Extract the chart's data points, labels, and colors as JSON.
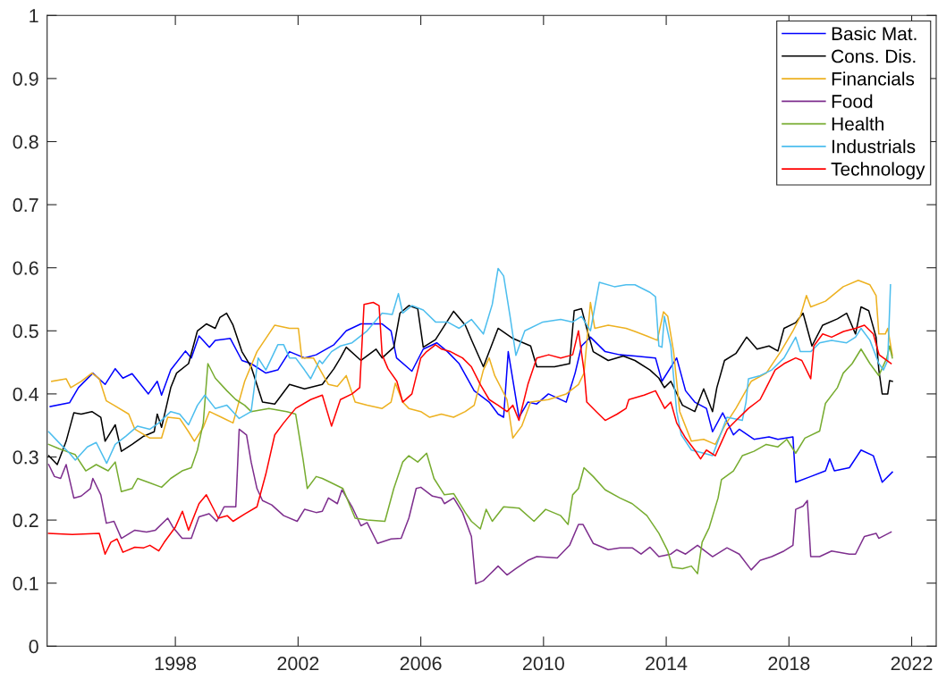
{
  "chart_data": {
    "type": "line",
    "xlim": [
      1993.82,
      2022.8
    ],
    "ylim": [
      0,
      1
    ],
    "xticks": [
      1998,
      2002,
      2006,
      2010,
      2014,
      2018,
      2022
    ],
    "yticks": [
      0,
      0.1,
      0.2,
      0.3,
      0.4,
      0.5,
      0.6,
      0.7,
      0.8,
      0.9,
      1
    ],
    "legend": "top right",
    "line_style": "solid",
    "series": [
      {
        "name": "Basic Mat.",
        "color": "#0000ff",
        "x": [
          1993.92,
          1994.55,
          1994.84,
          1995.31,
          1995.71,
          1996.04,
          1996.29,
          1996.59,
          1997.12,
          1997.41,
          1997.55,
          1997.85,
          1998.33,
          1998.52,
          1998.77,
          1999.11,
          1999.3,
          1999.79,
          2000.17,
          2000.47,
          2000.95,
          2001.34,
          2001.72,
          2002.21,
          2002.59,
          2003.17,
          2003.57,
          2004.05,
          2004.74,
          2005.03,
          2005.21,
          2005.71,
          2006.08,
          2006.52,
          2006.87,
          2007.25,
          2007.74,
          2008.23,
          2008.52,
          2008.7,
          2008.85,
          2009.2,
          2009.49,
          2009.78,
          2010.16,
          2010.74,
          2011.03,
          2011.24,
          2011.53,
          2012.01,
          2012.49,
          2012.98,
          2013.65,
          2013.86,
          2014.34,
          2014.63,
          2014.93,
          2015.31,
          2015.51,
          2015.84,
          2016.19,
          2016.38,
          2016.86,
          2017.35,
          2017.64,
          2018.13,
          2018.22,
          2018.71,
          2019.19,
          2019.33,
          2019.48,
          2019.97,
          2020.35,
          2020.75,
          2021.04,
          2021.37
        ],
        "values": [
          0.38,
          0.386,
          0.41,
          0.433,
          0.415,
          0.44,
          0.425,
          0.432,
          0.4,
          0.42,
          0.398,
          0.438,
          0.468,
          0.457,
          0.492,
          0.474,
          0.485,
          0.488,
          0.453,
          0.448,
          0.433,
          0.438,
          0.467,
          0.457,
          0.462,
          0.478,
          0.5,
          0.511,
          0.511,
          0.5,
          0.457,
          0.436,
          0.471,
          0.481,
          0.467,
          0.448,
          0.405,
          0.387,
          0.368,
          0.363,
          0.467,
          0.363,
          0.387,
          0.384,
          0.4,
          0.387,
          0.433,
          0.476,
          0.49,
          0.467,
          0.462,
          0.46,
          0.457,
          0.42,
          0.457,
          0.405,
          0.387,
          0.377,
          0.34,
          0.37,
          0.335,
          0.344,
          0.328,
          0.332,
          0.328,
          0.332,
          0.26,
          0.269,
          0.278,
          0.297,
          0.278,
          0.283,
          0.311,
          0.302,
          0.26,
          0.276
        ]
      },
      {
        "name": "Cons. Dis.",
        "color": "#000000",
        "x": [
          1993.87,
          1994.15,
          1994.44,
          1994.69,
          1994.93,
          1995.28,
          1995.57,
          1995.71,
          1996.04,
          1996.24,
          1996.59,
          1996.97,
          1997.31,
          1997.41,
          1997.55,
          1997.85,
          1998.04,
          1998.43,
          1998.72,
          1999.01,
          1999.3,
          1999.45,
          1999.67,
          1999.88,
          2000.17,
          2000.47,
          2000.84,
          2001.24,
          2001.72,
          2002.21,
          2002.79,
          2003.17,
          2003.38,
          2003.57,
          2004.05,
          2004.54,
          2004.74,
          2005.12,
          2005.32,
          2005.61,
          2005.9,
          2006.08,
          2006.48,
          2007.07,
          2007.45,
          2007.65,
          2008.04,
          2008.52,
          2009.0,
          2009.58,
          2009.78,
          2010.36,
          2010.85,
          2011.0,
          2011.24,
          2011.43,
          2011.62,
          2012.11,
          2012.6,
          2012.98,
          2013.47,
          2013.76,
          2013.94,
          2014.15,
          2014.53,
          2014.93,
          2015.22,
          2015.51,
          2015.65,
          2015.9,
          2016.27,
          2016.62,
          2016.96,
          2017.35,
          2017.64,
          2017.84,
          2018.22,
          2018.46,
          2018.75,
          2019.1,
          2019.58,
          2019.88,
          2020.17,
          2020.35,
          2020.6,
          2020.84,
          2020.93,
          2021.04,
          2021.22,
          2021.28,
          2021.37
        ],
        "values": [
          0.302,
          0.288,
          0.325,
          0.37,
          0.368,
          0.372,
          0.363,
          0.325,
          0.351,
          0.309,
          0.32,
          0.333,
          0.34,
          0.368,
          0.347,
          0.41,
          0.433,
          0.448,
          0.5,
          0.511,
          0.504,
          0.521,
          0.528,
          0.509,
          0.467,
          0.443,
          0.387,
          0.384,
          0.415,
          0.408,
          0.415,
          0.44,
          0.457,
          0.474,
          0.453,
          0.471,
          0.457,
          0.474,
          0.528,
          0.54,
          0.535,
          0.474,
          0.486,
          0.531,
          0.509,
          0.486,
          0.443,
          0.504,
          0.488,
          0.476,
          0.443,
          0.443,
          0.448,
          0.532,
          0.535,
          0.5,
          0.467,
          0.453,
          0.46,
          0.453,
          0.438,
          0.425,
          0.41,
          0.42,
          0.382,
          0.372,
          0.408,
          0.372,
          0.41,
          0.453,
          0.464,
          0.49,
          0.471,
          0.476,
          0.468,
          0.504,
          0.513,
          0.528,
          0.476,
          0.509,
          0.519,
          0.528,
          0.495,
          0.538,
          0.532,
          0.49,
          0.438,
          0.4,
          0.4,
          0.421,
          0.42
        ]
      },
      {
        "name": "Financials",
        "color": "#edb120",
        "x": [
          1993.97,
          1994.44,
          1994.59,
          1994.93,
          1995.28,
          1995.52,
          1995.75,
          1996.0,
          1996.48,
          1996.68,
          1997.17,
          1997.55,
          1997.75,
          1998.14,
          1998.43,
          1998.62,
          1998.91,
          1999.11,
          1999.5,
          1999.88,
          2000.26,
          2000.66,
          2001.24,
          2001.72,
          2002.01,
          2002.12,
          2002.5,
          2002.99,
          2003.28,
          2003.57,
          2003.86,
          2004.25,
          2004.74,
          2005.03,
          2005.17,
          2005.41,
          2005.61,
          2006.0,
          2006.29,
          2006.67,
          2007.07,
          2007.45,
          2007.74,
          2008.04,
          2008.23,
          2008.41,
          2008.81,
          2009.0,
          2009.29,
          2009.58,
          2010.16,
          2010.74,
          2011.14,
          2011.32,
          2011.53,
          2011.67,
          2012.11,
          2012.69,
          2012.98,
          2013.36,
          2013.71,
          2013.91,
          2014.05,
          2014.24,
          2014.44,
          2014.82,
          2015.22,
          2015.6,
          2015.9,
          2016.27,
          2016.77,
          2017.26,
          2017.73,
          2018.13,
          2018.37,
          2018.57,
          2018.71,
          2019.19,
          2019.77,
          2020.26,
          2020.64,
          2020.84,
          2020.93,
          2021.14,
          2021.22,
          2021.37
        ],
        "values": [
          0.42,
          0.424,
          0.41,
          0.42,
          0.433,
          0.424,
          0.389,
          0.382,
          0.368,
          0.344,
          0.33,
          0.33,
          0.363,
          0.361,
          0.34,
          0.325,
          0.347,
          0.372,
          0.363,
          0.354,
          0.42,
          0.467,
          0.509,
          0.504,
          0.504,
          0.457,
          0.457,
          0.415,
          0.412,
          0.429,
          0.387,
          0.382,
          0.377,
          0.387,
          0.417,
          0.387,
          0.377,
          0.372,
          0.363,
          0.368,
          0.363,
          0.372,
          0.382,
          0.438,
          0.457,
          0.429,
          0.391,
          0.33,
          0.349,
          0.387,
          0.391,
          0.4,
          0.415,
          0.433,
          0.545,
          0.504,
          0.509,
          0.504,
          0.499,
          0.492,
          0.485,
          0.53,
          0.523,
          0.467,
          0.372,
          0.325,
          0.328,
          0.32,
          0.349,
          0.377,
          0.42,
          0.433,
          0.467,
          0.5,
          0.523,
          0.556,
          0.538,
          0.547,
          0.57,
          0.58,
          0.573,
          0.556,
          0.495,
          0.495,
          0.504,
          0.461
        ]
      },
      {
        "name": "Food",
        "color": "#7e2f8e",
        "x": [
          1993.87,
          1994.06,
          1994.26,
          1994.44,
          1994.69,
          1994.93,
          1995.23,
          1995.31,
          1995.57,
          1995.75,
          1996.0,
          1996.24,
          1996.68,
          1997.06,
          1997.35,
          1997.75,
          1997.93,
          1998.22,
          1998.52,
          1998.77,
          1999.1,
          1999.35,
          1999.59,
          1999.97,
          2000.08,
          2000.32,
          2000.47,
          2000.66,
          2000.84,
          2001.14,
          2001.53,
          2001.97,
          2002.21,
          2002.59,
          2002.79,
          2002.99,
          2003.28,
          2003.43,
          2003.76,
          2004.05,
          2004.25,
          2004.59,
          2005.03,
          2005.36,
          2005.61,
          2005.85,
          2006.0,
          2006.38,
          2006.67,
          2006.77,
          2007.07,
          2007.36,
          2007.65,
          2007.79,
          2008.04,
          2008.23,
          2008.52,
          2008.81,
          2009.1,
          2009.49,
          2009.78,
          2010.45,
          2010.85,
          2011.14,
          2011.29,
          2011.62,
          2012.11,
          2012.49,
          2012.89,
          2013.18,
          2013.47,
          2013.76,
          2014.15,
          2014.34,
          2014.63,
          2015.02,
          2015.51,
          2015.98,
          2016.38,
          2016.77,
          2017.06,
          2017.44,
          2017.84,
          2018.13,
          2018.22,
          2018.46,
          2018.6,
          2018.71,
          2019.0,
          2019.39,
          2019.97,
          2020.17,
          2020.46,
          2020.84,
          2020.93,
          2021.33
        ],
        "values": [
          0.288,
          0.269,
          0.266,
          0.288,
          0.235,
          0.238,
          0.25,
          0.266,
          0.24,
          0.195,
          0.198,
          0.171,
          0.184,
          0.181,
          0.184,
          0.203,
          0.188,
          0.171,
          0.171,
          0.205,
          0.21,
          0.198,
          0.221,
          0.221,
          0.344,
          0.335,
          0.292,
          0.25,
          0.231,
          0.224,
          0.207,
          0.198,
          0.217,
          0.212,
          0.214,
          0.235,
          0.226,
          0.248,
          0.221,
          0.191,
          0.196,
          0.163,
          0.17,
          0.171,
          0.203,
          0.25,
          0.252,
          0.238,
          0.235,
          0.226,
          0.235,
          0.212,
          0.174,
          0.099,
          0.104,
          0.113,
          0.127,
          0.113,
          0.123,
          0.136,
          0.142,
          0.14,
          0.16,
          0.193,
          0.193,
          0.163,
          0.153,
          0.156,
          0.156,
          0.146,
          0.157,
          0.142,
          0.146,
          0.153,
          0.146,
          0.16,
          0.142,
          0.156,
          0.146,
          0.121,
          0.136,
          0.142,
          0.151,
          0.16,
          0.217,
          0.222,
          0.231,
          0.142,
          0.142,
          0.151,
          0.146,
          0.146,
          0.174,
          0.179,
          0.171,
          0.181
        ]
      },
      {
        "name": "Health",
        "color": "#77ac30",
        "x": [
          1993.87,
          1994.21,
          1994.44,
          1994.73,
          1995.08,
          1995.42,
          1995.81,
          1996.04,
          1996.24,
          1996.59,
          1996.77,
          1997.17,
          1997.55,
          1997.85,
          1998.22,
          1998.52,
          1998.72,
          1998.91,
          1999.06,
          1999.3,
          1999.68,
          1999.97,
          2000.26,
          2000.47,
          2001.05,
          2001.63,
          2001.92,
          2002.16,
          2002.3,
          2002.59,
          2002.79,
          2003.09,
          2003.46,
          2003.86,
          2004.25,
          2004.83,
          2005.12,
          2005.41,
          2005.61,
          2005.9,
          2006.19,
          2006.43,
          2006.77,
          2007.07,
          2007.45,
          2007.65,
          2007.94,
          2008.13,
          2008.33,
          2008.7,
          2009.2,
          2009.69,
          2010.07,
          2010.56,
          2010.8,
          2010.95,
          2011.14,
          2011.32,
          2011.62,
          2012.01,
          2012.49,
          2012.89,
          2013.37,
          2013.76,
          2014.05,
          2014.2,
          2014.53,
          2014.82,
          2015.02,
          2015.17,
          2015.4,
          2015.69,
          2015.8,
          2016.19,
          2016.48,
          2016.86,
          2017.26,
          2017.64,
          2017.93,
          2018.22,
          2018.52,
          2019.0,
          2019.19,
          2019.58,
          2019.77,
          2020.06,
          2020.35,
          2020.64,
          2020.93,
          2021.19,
          2021.28,
          2021.37
        ],
        "values": [
          0.32,
          0.313,
          0.309,
          0.304,
          0.278,
          0.288,
          0.278,
          0.292,
          0.245,
          0.25,
          0.266,
          0.259,
          0.252,
          0.266,
          0.278,
          0.283,
          0.311,
          0.354,
          0.448,
          0.425,
          0.405,
          0.391,
          0.382,
          0.372,
          0.377,
          0.372,
          0.368,
          0.297,
          0.25,
          0.269,
          0.266,
          0.259,
          0.25,
          0.203,
          0.2,
          0.198,
          0.25,
          0.292,
          0.302,
          0.292,
          0.306,
          0.266,
          0.24,
          0.242,
          0.212,
          0.198,
          0.186,
          0.217,
          0.198,
          0.221,
          0.219,
          0.198,
          0.217,
          0.207,
          0.193,
          0.24,
          0.25,
          0.283,
          0.269,
          0.248,
          0.235,
          0.226,
          0.207,
          0.179,
          0.151,
          0.125,
          0.123,
          0.127,
          0.115,
          0.165,
          0.188,
          0.235,
          0.264,
          0.278,
          0.302,
          0.309,
          0.32,
          0.316,
          0.328,
          0.306,
          0.33,
          0.341,
          0.385,
          0.41,
          0.433,
          0.448,
          0.471,
          0.448,
          0.429,
          0.457,
          0.476,
          0.457
        ]
      },
      {
        "name": "Industrials",
        "color": "#4dbeee",
        "x": [
          1993.87,
          1994.26,
          1994.55,
          1994.74,
          1995.13,
          1995.42,
          1995.76,
          1996.04,
          1996.39,
          1996.77,
          1997.17,
          1997.46,
          1997.85,
          1998.14,
          1998.43,
          1998.72,
          1998.96,
          1999.3,
          1999.68,
          2000.08,
          2000.47,
          2000.7,
          2000.95,
          2001.34,
          2001.53,
          2001.72,
          2001.92,
          2002.21,
          2002.41,
          2002.7,
          2002.79,
          2003.09,
          2003.38,
          2003.76,
          2004.25,
          2004.74,
          2005.07,
          2005.27,
          2005.41,
          2005.71,
          2006.08,
          2006.48,
          2006.87,
          2007.25,
          2007.65,
          2008.04,
          2008.33,
          2008.52,
          2008.7,
          2008.91,
          2009.1,
          2009.39,
          2009.98,
          2010.56,
          2010.95,
          2011.24,
          2011.53,
          2011.82,
          2012.31,
          2012.69,
          2012.98,
          2013.47,
          2013.65,
          2013.76,
          2013.86,
          2013.94,
          2014.15,
          2014.34,
          2014.49,
          2014.82,
          2015.22,
          2015.51,
          2015.98,
          2016.48,
          2016.6,
          2016.68,
          2017.06,
          2017.44,
          2017.84,
          2018.22,
          2018.37,
          2018.71,
          2019.0,
          2019.39,
          2019.88,
          2020.17,
          2020.35,
          2020.64,
          2020.93,
          2021.08,
          2021.22,
          2021.31
        ],
        "values": [
          0.34,
          0.32,
          0.306,
          0.295,
          0.316,
          0.323,
          0.29,
          0.32,
          0.333,
          0.349,
          0.344,
          0.354,
          0.372,
          0.368,
          0.351,
          0.382,
          0.398,
          0.377,
          0.382,
          0.361,
          0.372,
          0.457,
          0.438,
          0.478,
          0.478,
          0.457,
          0.457,
          0.438,
          0.424,
          0.453,
          0.448,
          0.467,
          0.476,
          0.481,
          0.5,
          0.528,
          0.526,
          0.559,
          0.528,
          0.54,
          0.533,
          0.514,
          0.514,
          0.504,
          0.518,
          0.495,
          0.542,
          0.599,
          0.587,
          0.523,
          0.461,
          0.5,
          0.514,
          0.518,
          0.514,
          0.523,
          0.5,
          0.577,
          0.57,
          0.573,
          0.573,
          0.561,
          0.554,
          0.476,
          0.474,
          0.523,
          0.476,
          0.372,
          0.335,
          0.311,
          0.306,
          0.302,
          0.363,
          0.358,
          0.387,
          0.424,
          0.429,
          0.438,
          0.457,
          0.49,
          0.467,
          0.467,
          0.481,
          0.485,
          0.481,
          0.49,
          0.504,
          0.485,
          0.448,
          0.438,
          0.453,
          0.573
        ]
      },
      {
        "name": "Technology",
        "color": "#ff0000",
        "x": [
          1993.87,
          1994.64,
          1995.52,
          1995.71,
          1995.9,
          1996.1,
          1996.29,
          1996.68,
          1996.97,
          1997.17,
          1997.46,
          1997.64,
          1997.99,
          1998.23,
          1998.43,
          1998.77,
          1999.01,
          1999.21,
          1999.4,
          1999.69,
          1999.88,
          2000.27,
          2000.66,
          2000.95,
          2001.24,
          2001.53,
          2001.92,
          2002.41,
          2002.79,
          2003.09,
          2003.38,
          2003.76,
          2004.01,
          2004.15,
          2004.45,
          2004.64,
          2004.74,
          2004.93,
          2005.22,
          2005.41,
          2005.71,
          2006.0,
          2006.19,
          2006.48,
          2006.68,
          2006.97,
          2007.36,
          2007.65,
          2007.94,
          2008.23,
          2008.52,
          2008.81,
          2009.0,
          2009.2,
          2009.49,
          2009.78,
          2010.17,
          2010.56,
          2010.95,
          2011.14,
          2011.33,
          2011.41,
          2011.72,
          2012.01,
          2012.4,
          2012.69,
          2012.78,
          2013.28,
          2013.65,
          2013.95,
          2014.15,
          2014.34,
          2014.63,
          2014.93,
          2015.12,
          2015.31,
          2015.6,
          2015.99,
          2016.28,
          2016.68,
          2017.06,
          2017.26,
          2017.55,
          2017.84,
          2018.22,
          2018.42,
          2018.71,
          2018.81,
          2019.1,
          2019.39,
          2019.78,
          2020.17,
          2020.46,
          2020.75,
          2020.94,
          2021.33
        ],
        "values": [
          0.179,
          0.177,
          0.179,
          0.146,
          0.165,
          0.17,
          0.149,
          0.157,
          0.156,
          0.16,
          0.151,
          0.165,
          0.188,
          0.214,
          0.184,
          0.226,
          0.24,
          0.221,
          0.203,
          0.207,
          0.198,
          0.21,
          0.221,
          0.273,
          0.335,
          0.354,
          0.377,
          0.391,
          0.398,
          0.349,
          0.391,
          0.4,
          0.41,
          0.542,
          0.545,
          0.54,
          0.462,
          0.44,
          0.42,
          0.387,
          0.4,
          0.457,
          0.467,
          0.478,
          0.471,
          0.467,
          0.457,
          0.443,
          0.415,
          0.391,
          0.382,
          0.372,
          0.382,
          0.358,
          0.415,
          0.457,
          0.462,
          0.457,
          0.462,
          0.5,
          0.433,
          0.387,
          0.372,
          0.358,
          0.368,
          0.377,
          0.391,
          0.398,
          0.405,
          0.377,
          0.387,
          0.354,
          0.33,
          0.311,
          0.297,
          0.311,
          0.302,
          0.344,
          0.358,
          0.377,
          0.391,
          0.41,
          0.438,
          0.448,
          0.457,
          0.453,
          0.424,
          0.476,
          0.495,
          0.49,
          0.499,
          0.504,
          0.509,
          0.495,
          0.462,
          0.448
        ]
      }
    ]
  }
}
